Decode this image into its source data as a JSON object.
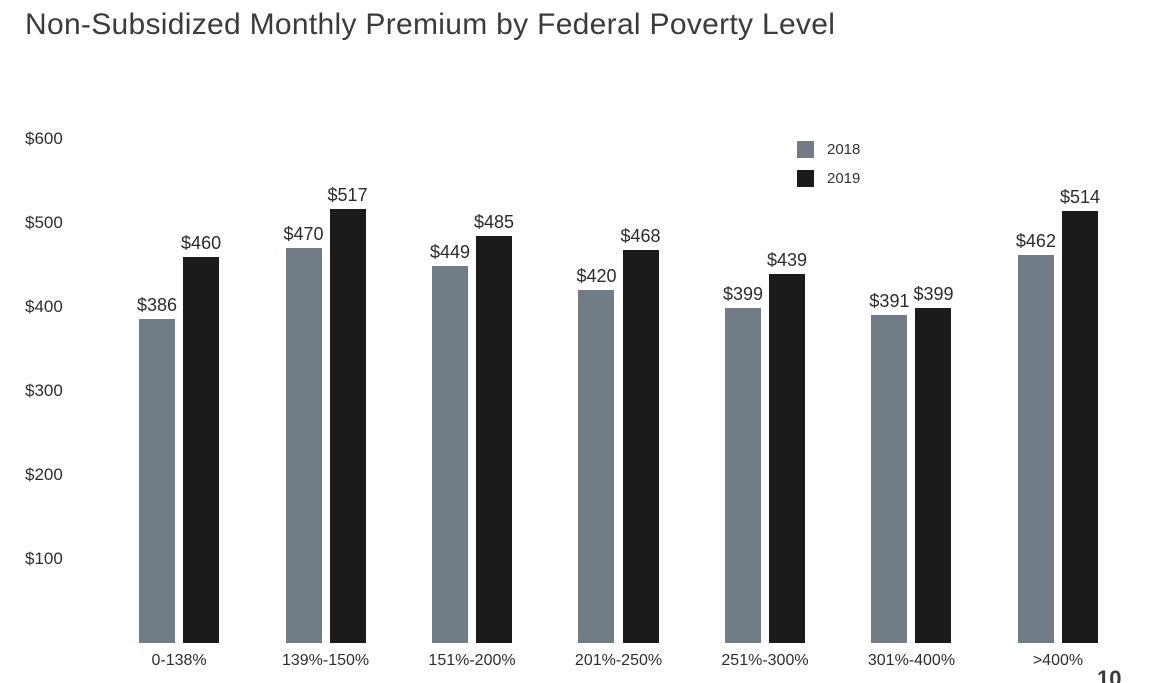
{
  "title": "Non-Subsidized Monthly Premium by Federal Poverty Level",
  "page_number": "10",
  "chart_data": {
    "type": "bar",
    "title": "Non-Subsidized Monthly Premium by Federal Poverty Level",
    "categories": [
      "0-138%",
      "139%-150%",
      "151%-200%",
      "201%-250%",
      "251%-300%",
      "301%-400%",
      ">400%"
    ],
    "series": [
      {
        "name": "2018",
        "color": "#717C86",
        "values": [
          386,
          470,
          449,
          420,
          399,
          391,
          462
        ]
      },
      {
        "name": "2019",
        "color": "#1D1A1B",
        "values": [
          460,
          517,
          485,
          468,
          439,
          399,
          514
        ]
      }
    ],
    "value_prefix": "$",
    "data_labels": true,
    "y_ticks": [
      {
        "label": "$600",
        "value": 600
      },
      {
        "label": "$500",
        "value": 500
      },
      {
        "label": "$400",
        "value": 400
      },
      {
        "label": "$300",
        "value": 300
      },
      {
        "label": "$200",
        "value": 200
      },
      {
        "label": "$100",
        "value": 100
      }
    ],
    "ylim": [
      0,
      600
    ],
    "grid": false,
    "legend_position": "top-right",
    "background": "#ffffff"
  }
}
